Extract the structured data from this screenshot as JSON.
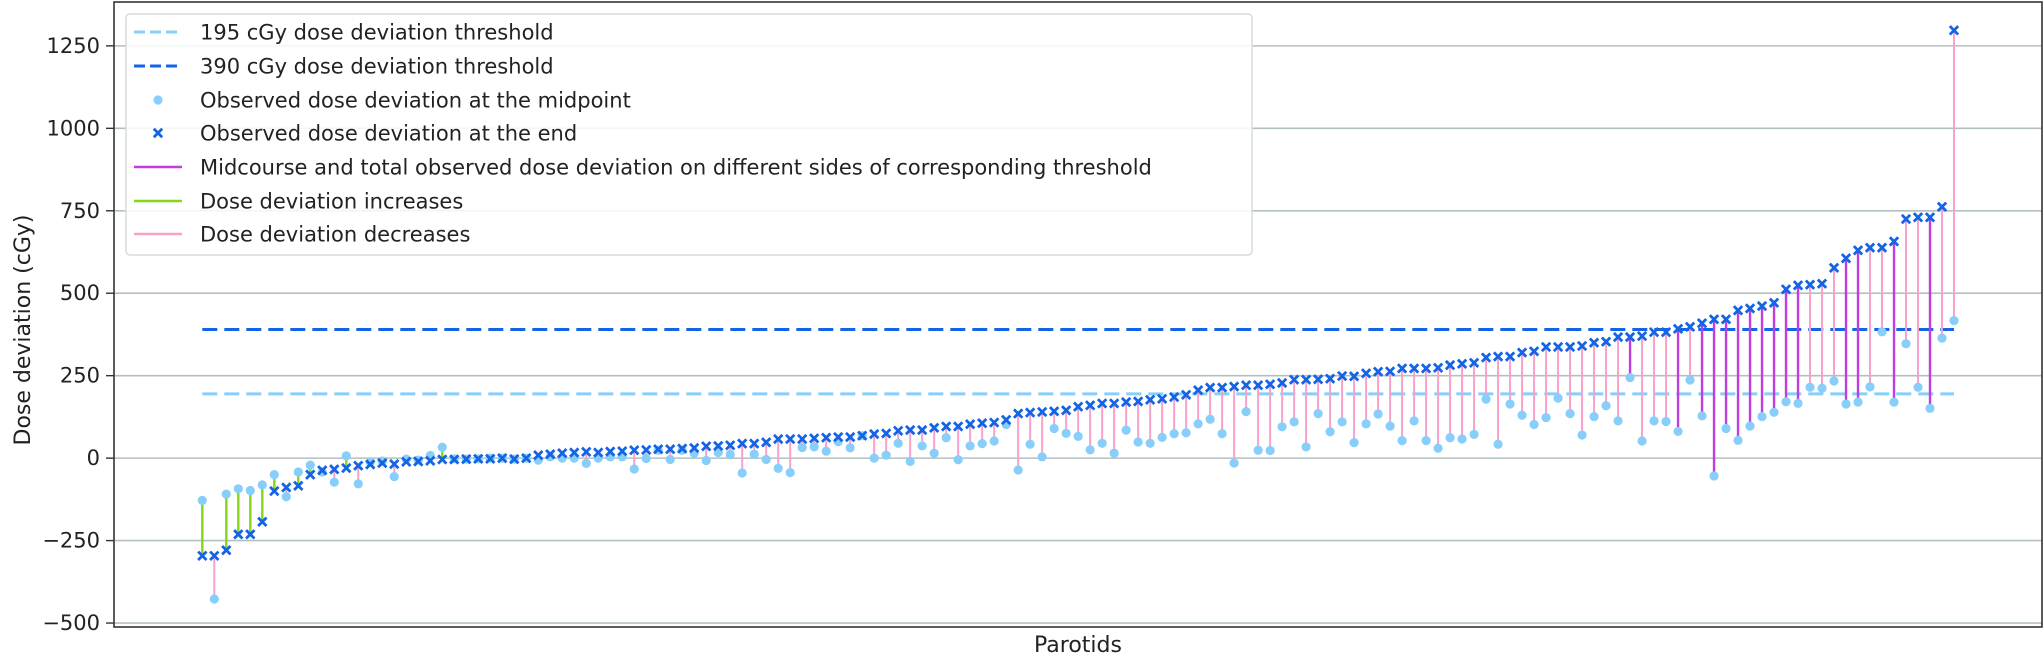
{
  "chart_data": {
    "type": "scatter",
    "xlabel": "Parotids",
    "ylabel": "Dose deviation (cGy)",
    "ylim": [
      -512,
      1383
    ],
    "yticks": [
      -500,
      -250,
      0,
      250,
      500,
      750,
      1000,
      1250
    ],
    "ytick_labels": [
      "−500",
      "−250",
      "0",
      "250",
      "500",
      "750",
      "1000",
      "1250"
    ],
    "grid": "horizontal",
    "legend_placement": "top-left",
    "thresholds": [
      {
        "value": 195,
        "label": "195 cGy dose deviation threshold",
        "color": "#87cefa",
        "style": "dashed"
      },
      {
        "value": 390,
        "label": "390 cGy dose deviation threshold",
        "color": "#1464e6",
        "style": "dashed"
      }
    ],
    "legend": [
      {
        "key": "t195",
        "label": "195 cGy dose deviation threshold"
      },
      {
        "key": "t390",
        "label": "390 cGy dose deviation threshold"
      },
      {
        "key": "mid",
        "label": "Observed dose deviation at the midpoint"
      },
      {
        "key": "end",
        "label": "Observed dose deviation at the end"
      },
      {
        "key": "cross",
        "label": "Midcourse and total observed dose deviation on different sides of corresponding threshold"
      },
      {
        "key": "inc",
        "label": "Dose deviation increases"
      },
      {
        "key": "dec",
        "label": "Dose deviation decreases"
      }
    ],
    "colors": {
      "mid": "#87cefa",
      "end": "#1464e6",
      "cross": "#c03de0",
      "inc": "#86d61a",
      "dec": "#f7a1cb",
      "grid": "#b4c0c0"
    },
    "midpoint": [
      -128,
      -427,
      -109,
      -93,
      -98,
      -81,
      -50,
      -117,
      -42,
      -21,
      -42,
      -73,
      7,
      -78,
      -12,
      -9,
      -56,
      -3,
      -6,
      8,
      33,
      -2,
      -3,
      -2,
      0,
      0,
      -3,
      0,
      -6,
      4,
      0,
      0,
      -16,
      0,
      4,
      4,
      -33,
      -1,
      24,
      -4,
      24,
      15,
      -7,
      17,
      11,
      -45,
      12,
      -4,
      -31,
      -44,
      32,
      34,
      21,
      50,
      31,
      68,
      0,
      9,
      45,
      -10,
      37,
      15,
      62,
      -5,
      37,
      44,
      52,
      102,
      -36,
      42,
      4,
      90,
      75,
      66,
      25,
      45,
      15,
      85,
      49,
      45,
      63,
      74,
      77,
      104,
      118,
      74,
      -15,
      141,
      24,
      23,
      95,
      110,
      34,
      135,
      80,
      110,
      47,
      104,
      134,
      97,
      53,
      113,
      53,
      30,
      62,
      58,
      72,
      179,
      42,
      164,
      130,
      102,
      123,
      182,
      135,
      70,
      126,
      159,
      113,
      244,
      52,
      113,
      111,
      81,
      237,
      128,
      -54,
      90,
      54,
      97,
      126,
      139,
      171,
      166,
      215,
      212,
      234,
      164,
      170,
      216,
      383,
      170,
      347,
      215,
      151,
      364,
      417
    ],
    "end": [
      -296,
      -296,
      -279,
      -231,
      -231,
      -193,
      -100,
      -89,
      -84,
      -50,
      -37,
      -34,
      -30,
      -23,
      -19,
      -15,
      -18,
      -11,
      -10,
      -8,
      -4,
      -4,
      -3,
      -2,
      -2,
      0,
      -3,
      0,
      9,
      12,
      15,
      17,
      19,
      17,
      20,
      21,
      24,
      25,
      27,
      27,
      29,
      31,
      36,
      37,
      39,
      44,
      44,
      48,
      58,
      58,
      58,
      60,
      62,
      64,
      64,
      68,
      73,
      75,
      83,
      85,
      85,
      92,
      96,
      96,
      103,
      106,
      108,
      116,
      135,
      138,
      140,
      142,
      145,
      156,
      160,
      166,
      166,
      170,
      172,
      177,
      180,
      185,
      192,
      206,
      214,
      214,
      217,
      221,
      221,
      224,
      228,
      238,
      238,
      239,
      241,
      249,
      248,
      257,
      262,
      263,
      272,
      272,
      272,
      274,
      282,
      286,
      289,
      305,
      308,
      308,
      320,
      324,
      337,
      337,
      337,
      340,
      350,
      353,
      367,
      367,
      370,
      382,
      382,
      392,
      398,
      409,
      421,
      421,
      448,
      454,
      461,
      471,
      512,
      524,
      526,
      529,
      577,
      606,
      630,
      638,
      638,
      657,
      725,
      730,
      730,
      762,
      1297
    ],
    "category": [
      "inc",
      "dec",
      "inc",
      "inc",
      "inc",
      "inc",
      "inc",
      "dec",
      "inc",
      "inc",
      "dec",
      "dec",
      "inc",
      "dec",
      "inc",
      "inc",
      "dec",
      "inc",
      "inc",
      "inc",
      "inc",
      "dec",
      "dec",
      "dec",
      "dec",
      "dec",
      "dec",
      "dec",
      "dec",
      "dec",
      "dec",
      "dec",
      "dec",
      "dec",
      "dec",
      "dec",
      "dec",
      "dec",
      "dec",
      "dec",
      "dec",
      "dec",
      "dec",
      "dec",
      "dec",
      "dec",
      "dec",
      "dec",
      "dec",
      "dec",
      "dec",
      "dec",
      "dec",
      "dec",
      "dec",
      "dec",
      "dec",
      "dec",
      "dec",
      "dec",
      "dec",
      "dec",
      "dec",
      "dec",
      "dec",
      "dec",
      "dec",
      "dec",
      "dec",
      "dec",
      "dec",
      "dec",
      "dec",
      "dec",
      "dec",
      "dec",
      "dec",
      "dec",
      "dec",
      "dec",
      "dec",
      "dec",
      "dec",
      "dec",
      "dec",
      "dec",
      "dec",
      "dec",
      "dec",
      "dec",
      "dec",
      "dec",
      "dec",
      "dec",
      "dec",
      "dec",
      "dec",
      "dec",
      "dec",
      "dec",
      "dec",
      "dec",
      "dec",
      "dec",
      "dec",
      "dec",
      "dec",
      "dec",
      "dec",
      "dec",
      "dec",
      "dec",
      "dec",
      "dec",
      "dec",
      "dec",
      "dec",
      "dec",
      "dec",
      "cross",
      "dec",
      "dec",
      "dec",
      "cross",
      "dec",
      "cross",
      "cross",
      "cross",
      "cross",
      "cross",
      "cross",
      "cross",
      "cross",
      "cross",
      "dec",
      "dec",
      "dec",
      "cross",
      "cross",
      "dec",
      "dec",
      "cross",
      "dec",
      "dec",
      "cross",
      "dec",
      "dec"
    ]
  }
}
